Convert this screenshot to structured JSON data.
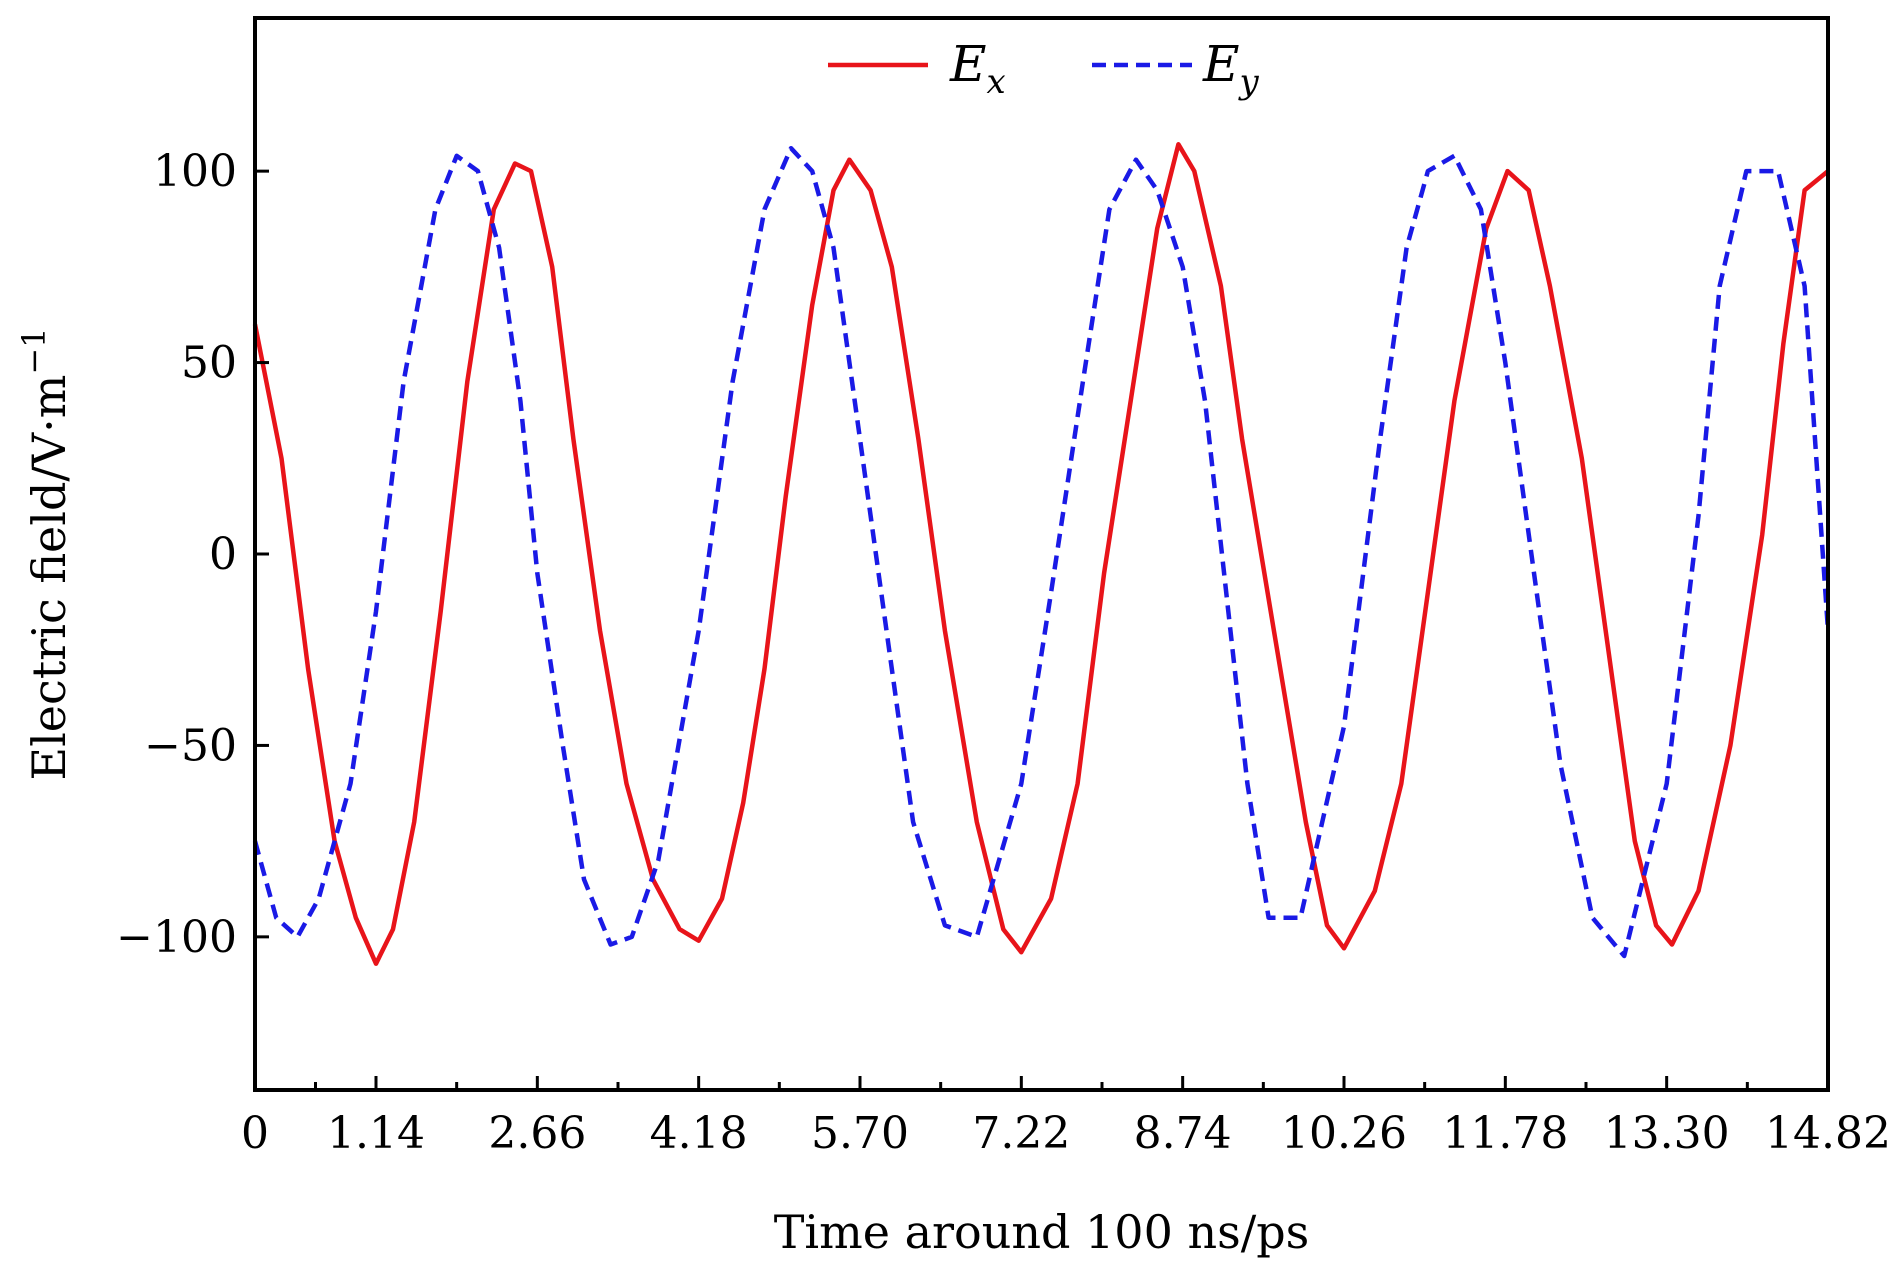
{
  "chart_data": {
    "type": "line",
    "title": "",
    "xlabel": "Time around 100 ns/ps",
    "ylabel": "Electric field/V·m",
    "ylabel_superscript": "−1",
    "xlim": [
      0,
      14.82
    ],
    "ylim": [
      -140,
      140
    ],
    "x_ticks": [
      0,
      1.14,
      2.66,
      4.18,
      5.7,
      7.22,
      8.74,
      10.26,
      11.78,
      13.3,
      14.82
    ],
    "x_tick_labels": [
      "0",
      "1.14",
      "2.66",
      "4.18",
      "5.70",
      "7.22",
      "8.74",
      "10.26",
      "11.78",
      "13.30",
      "14.82"
    ],
    "y_ticks": [
      -100,
      -50,
      0,
      50,
      100
    ],
    "y_tick_labels": [
      "−100",
      "−50",
      "0",
      "50",
      "100"
    ],
    "grid": false,
    "legend_position": "top-center",
    "series": [
      {
        "name": "E",
        "name_subscript": "x",
        "color": "#e8141a",
        "dash": "solid",
        "x": [
          0,
          0.25,
          0.5,
          0.75,
          0.95,
          1.14,
          1.3,
          1.5,
          1.75,
          2.0,
          2.25,
          2.45,
          2.6,
          2.8,
          3.0,
          3.25,
          3.5,
          3.75,
          4.0,
          4.18,
          4.4,
          4.6,
          4.8,
          5.0,
          5.25,
          5.45,
          5.6,
          5.8,
          6.0,
          6.25,
          6.5,
          6.8,
          7.05,
          7.22,
          7.5,
          7.75,
          8.0,
          8.25,
          8.5,
          8.7,
          8.85,
          9.1,
          9.3,
          9.6,
          9.9,
          10.1,
          10.26,
          10.55,
          10.8,
          11.05,
          11.3,
          11.6,
          11.8,
          12.0,
          12.2,
          12.5,
          12.75,
          13.0,
          13.2,
          13.35,
          13.6,
          13.9,
          14.2,
          14.4,
          14.6,
          14.82
        ],
        "values": [
          60,
          25,
          -30,
          -75,
          -95,
          -107,
          -98,
          -70,
          -15,
          45,
          90,
          102,
          100,
          75,
          30,
          -20,
          -60,
          -85,
          -98,
          -101,
          -90,
          -65,
          -30,
          15,
          65,
          95,
          103,
          95,
          75,
          30,
          -20,
          -70,
          -98,
          -104,
          -90,
          -60,
          -5,
          40,
          85,
          107,
          100,
          70,
          30,
          -20,
          -70,
          -97,
          -103,
          -88,
          -60,
          -10,
          40,
          85,
          100,
          95,
          70,
          25,
          -25,
          -75,
          -97,
          -102,
          -88,
          -50,
          5,
          55,
          95,
          100
        ]
      },
      {
        "name": "E",
        "name_subscript": "y",
        "color": "#1a1ae6",
        "dash": "dashed",
        "x": [
          0,
          0.2,
          0.4,
          0.6,
          0.9,
          1.14,
          1.4,
          1.7,
          1.9,
          2.1,
          2.3,
          2.5,
          2.66,
          2.9,
          3.1,
          3.35,
          3.55,
          3.8,
          4.18,
          4.5,
          4.8,
          5.05,
          5.25,
          5.45,
          5.7,
          5.95,
          6.2,
          6.5,
          6.8,
          7.22,
          7.5,
          7.8,
          8.05,
          8.3,
          8.5,
          8.74,
          8.95,
          9.15,
          9.35,
          9.55,
          9.85,
          10.26,
          10.6,
          10.85,
          11.05,
          11.3,
          11.55,
          11.78,
          12.05,
          12.3,
          12.6,
          12.9,
          13.3,
          13.6,
          13.8,
          14.05,
          14.35,
          14.6,
          14.82
        ],
        "values": [
          -75,
          -95,
          -100,
          -90,
          -60,
          -15,
          45,
          90,
          104,
          100,
          80,
          40,
          -5,
          -50,
          -85,
          -102,
          -100,
          -80,
          -20,
          45,
          90,
          106,
          100,
          80,
          30,
          -20,
          -70,
          -97,
          -100,
          -60,
          -10,
          45,
          90,
          103,
          95,
          75,
          40,
          -10,
          -60,
          -95,
          -95,
          -45,
          30,
          80,
          100,
          104,
          90,
          50,
          -5,
          -55,
          -95,
          -105,
          -60,
          10,
          70,
          100,
          100,
          70,
          -20
        ]
      }
    ]
  }
}
